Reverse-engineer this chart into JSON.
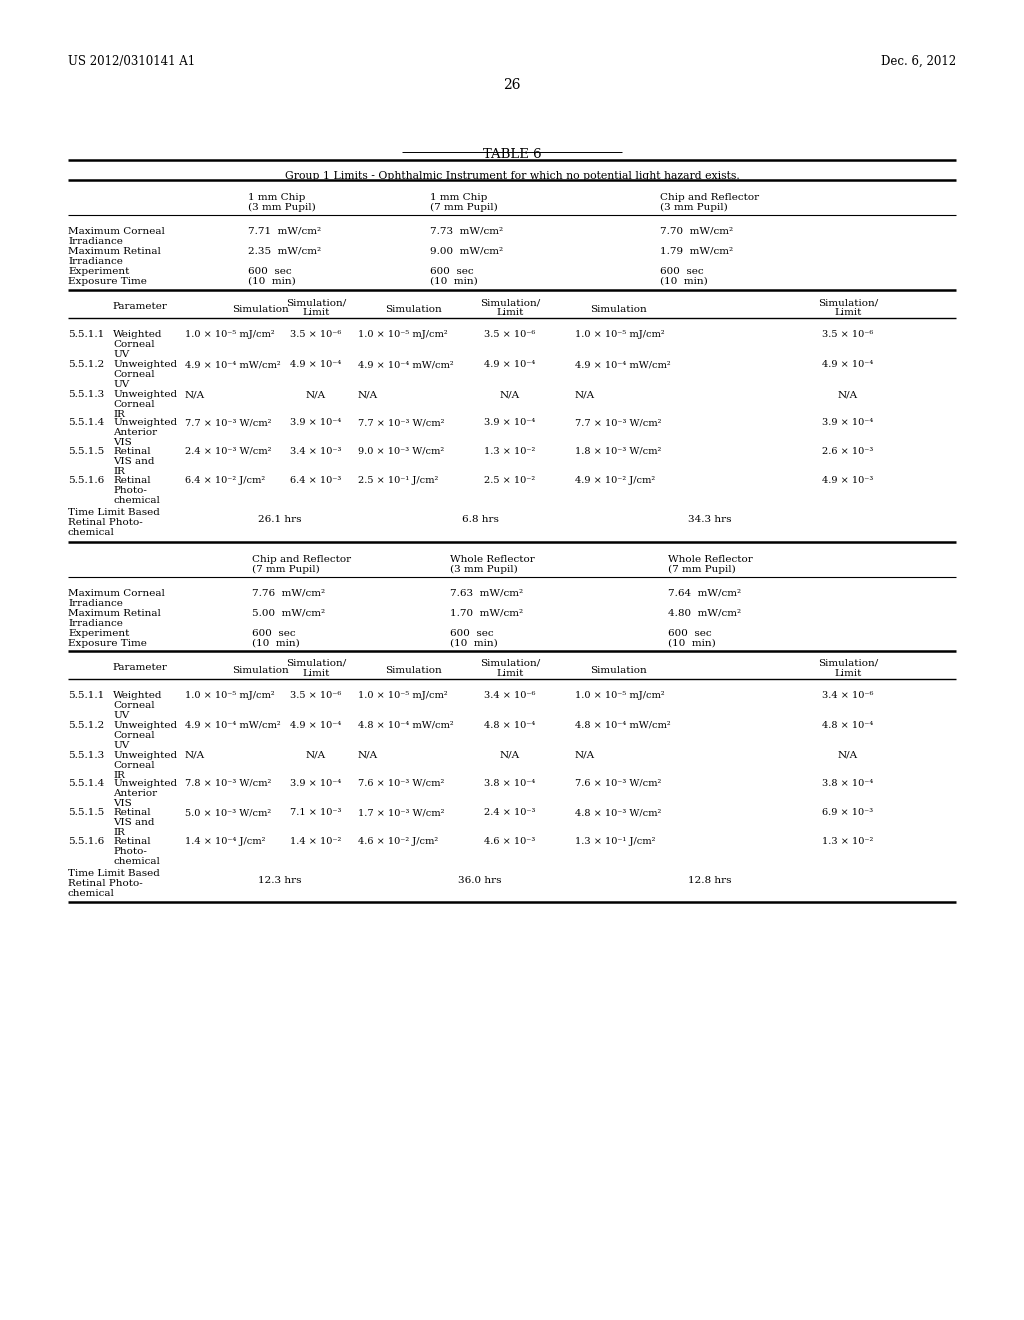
{
  "title": "TABLE 6",
  "header_left": "US 2012/0310141 A1",
  "header_right": "Dec. 6, 2012",
  "page_number": "26",
  "background": "#ffffff",
  "text_color": "#000000",
  "group1_text": "Group 1 Limits - Ophthalmic Instrument for which no potential light hazard exists.",
  "col1a": "1 mm Chip",
  "col1b": "(3 mm Pupil)",
  "col2a": "1 mm Chip",
  "col2b": "(7 mm Pupil)",
  "col3a": "Chip and Reflector",
  "col3b": "(3 mm Pupil)",
  "col4a": "Chip and Reflector",
  "col4b": "(7 mm Pupil)",
  "col5a": "Whole Reflector",
  "col5b": "(3 mm Pupil)",
  "col6a": "Whole Reflector",
  "col6b": "(7 mm Pupil)"
}
